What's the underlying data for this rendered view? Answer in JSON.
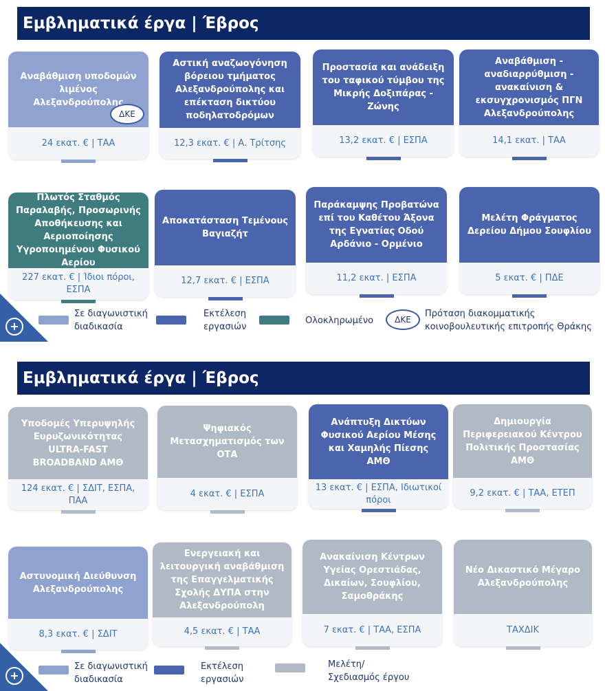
{
  "colors": {
    "tender": "#8fa2d0",
    "execution": "#4a64ae",
    "completed": "#3e7c80",
    "study": "#b1b9c6",
    "header": "#0d2664",
    "footer_text": "#3c73b8"
  },
  "section1": {
    "title": "Εμβληματικά έργα | Έβρος",
    "cards": [
      {
        "title": "Αναβάθμιση υποδομών λιμένος Αλεξανδρούπολης",
        "footer": "24 εκατ. € | ΤΑΑ",
        "status": "tender",
        "badge": "ΔΚΕ"
      },
      {
        "title": "Αστική αναζωογόνηση βόρειου τμήματος Αλεξανδρούπολης και επέκταση δικτύου ποδηλατοδρόμων",
        "footer": "12,3 εκατ. € | Α. Τρίτσης",
        "status": "execution"
      },
      {
        "title": "Προστασία και ανάδειξη του ταφικού τύμβου της Μικρής Δοξιπάρας - Ζώνης",
        "footer": "13,2 εκατ. € | ΕΣΠΑ",
        "status": "execution"
      },
      {
        "title": "Αναβάθμιση - αναδιαρρύθμιση - ανακαίνιση & εκσυγχρονισμός ΠΓΝ Αλεξανδρούπολης",
        "footer": "14,1 εκατ. | ΤΑΑ",
        "status": "execution"
      },
      {
        "title": "Πλωτός Σταθμός Παραλαβής, Προσωρινής Αποθήκευσης και Αεριοποίησης Υγροποιημένου Φυσικού Αερίου",
        "footer": "227 εκατ. € | Ίδιοι πόροι, ΕΣΠΑ",
        "status": "completed"
      },
      {
        "title": "Αποκατάσταση Τεμένους Βαγιαζήτ",
        "footer": "12,7 εκατ. € | ΕΣΠΑ",
        "status": "execution"
      },
      {
        "title": "Παράκαμψης Προβατώνα επί του Καθέτου Άξονα της Εγνατίας Οδού Αρδάνιο - Ορμένιο",
        "footer": "11,2 εκατ. | ΕΣΠΑ",
        "status": "execution"
      },
      {
        "title": "Μελέτη Φράγματος Δερείου Δήμου Σουφλίου",
        "footer": "5 εκατ. € | ΠΔΕ",
        "status": "execution"
      }
    ],
    "legend": [
      {
        "label": "Σε διαγωνιστική διαδικασία",
        "status": "tender"
      },
      {
        "label": "Εκτέλεση εργασιών",
        "status": "execution"
      },
      {
        "label": "Ολοκληρωμένο",
        "status": "completed"
      },
      {
        "badge": "ΔΚΕ",
        "label": "Πρόταση διακομματικής κοινοβουλευτικής επιτροπής Θράκης"
      }
    ]
  },
  "section2": {
    "title": "Εμβληματικά έργα | Έβρος",
    "cards": [
      {
        "title": "Υποδομές Υπερυψηλής Ευρυζωνικότητας ULTRA-FAST BROADBAND ΑΜΘ",
        "footer": "124 εκατ. € | ΣΔΙΤ, ΕΣΠΑ, ΠΑΑ",
        "status": "study"
      },
      {
        "title": "Ψηφιακός Μετασχηματισμός των ΟΤΑ",
        "footer": "4 εκατ. € | ΕΣΠΑ",
        "status": "study"
      },
      {
        "title": "Ανάπτυξη Δικτύων Φυσικού Αερίου Μέσης και Χαμηλής Πίεσης ΑΜΘ",
        "footer": "13 εκατ. € | ΕΣΠΑ, Ιδιωτικοί πόροι",
        "status": "execution"
      },
      {
        "title": "Δημιουργία Περιφερειακού Κέντρου Πολιτικής Προστασίας ΑΜΘ",
        "footer": "9,2 εκατ. € | ΤΑΑ, ΕΤΕΠ",
        "status": "study"
      },
      {
        "title": "Αστυνομική Διεύθυνση Αλεξανδρούπολης",
        "footer": "8,3 εκατ. € | ΣΔΙΤ",
        "status": "tender"
      },
      {
        "title": "Ενεργειακή και λειτουργική αναβάθμιση της Επαγγελματικής Σχολής ΔΥΠΑ στην Αλεξανδρούπολη",
        "footer": "4,5 εκατ. € | ΤΑΑ",
        "status": "study"
      },
      {
        "title": "Ανακαίνιση Κέντρων Υγείας Ορεστιάδας, Δικαίων, Σουφλίου, Σαμοθράκης",
        "footer": "7 εκατ. € | ΤΑΑ, ΕΣΠΑ",
        "status": "study"
      },
      {
        "title": "Νέο Δικαστικό Μέγαρο Αλεξανδρούπολης",
        "footer": "ΤΑΧΔΙΚ",
        "status": "study"
      }
    ],
    "legend": [
      {
        "label": "Σε διαγωνιστική διαδικασία",
        "status": "tender"
      },
      {
        "label": "Εκτέλεση εργασιών",
        "status": "execution"
      },
      {
        "label": "Μελέτη/ Σχεδιασμός έργου",
        "status": "study"
      }
    ]
  }
}
